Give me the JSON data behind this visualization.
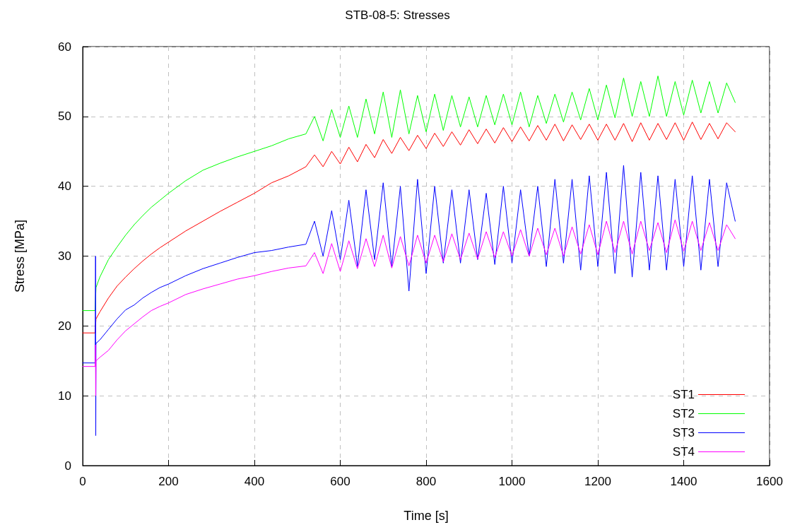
{
  "chart_data": {
    "type": "line",
    "title": "STB-08-5: Stresses",
    "xlabel": "Time [s]",
    "ylabel": "Stress [MPa]",
    "x": [
      0,
      29,
      30,
      30.5,
      31,
      40,
      60,
      80,
      100,
      120,
      140,
      160,
      180,
      200,
      240,
      280,
      320,
      360,
      400,
      440,
      480,
      520,
      540,
      560,
      580,
      600,
      620,
      640,
      660,
      680,
      700,
      720,
      740,
      760,
      780,
      800,
      820,
      840,
      860,
      880,
      900,
      920,
      940,
      960,
      980,
      1000,
      1020,
      1040,
      1060,
      1080,
      1100,
      1120,
      1140,
      1160,
      1180,
      1200,
      1220,
      1240,
      1260,
      1280,
      1300,
      1320,
      1340,
      1360,
      1380,
      1400,
      1420,
      1440,
      1460,
      1480,
      1500,
      1520
    ],
    "series": [
      {
        "name": "ST1",
        "color": "#ff0000",
        "x": [
          0,
          29,
          31,
          40,
          60,
          80,
          100,
          120,
          140,
          160,
          180,
          200,
          240,
          280,
          320,
          360,
          400,
          440,
          480,
          520,
          540,
          560,
          580,
          600,
          620,
          640,
          660,
          680,
          700,
          720,
          740,
          760,
          780,
          800,
          820,
          840,
          860,
          880,
          900,
          920,
          940,
          960,
          980,
          1000,
          1020,
          1040,
          1060,
          1080,
          1100,
          1120,
          1140,
          1160,
          1180,
          1200,
          1220,
          1240,
          1260,
          1280,
          1300,
          1320,
          1340,
          1360,
          1380,
          1400,
          1420,
          1440,
          1460,
          1480,
          1500,
          1520
        ],
        "values": [
          19,
          19,
          21,
          22,
          24,
          25.7,
          27,
          28.2,
          29.3,
          30.3,
          31.2,
          32,
          33.6,
          35,
          36.4,
          37.7,
          39,
          40.5,
          41.5,
          42.8,
          44.5,
          42.8,
          45,
          43.2,
          45.6,
          43.5,
          46,
          44.1,
          46.7,
          44.7,
          47,
          45.1,
          47.3,
          45.4,
          47.6,
          45.7,
          47.8,
          45.9,
          48.1,
          46.1,
          48.2,
          46.2,
          48.4,
          46.4,
          48.5,
          46.5,
          48.7,
          46.6,
          48.9,
          46.5,
          48.8,
          46.7,
          48.9,
          46.6,
          48.9,
          46.6,
          49,
          46.4,
          49.1,
          46.6,
          49,
          46.7,
          49.1,
          46.6,
          49.2,
          46.7,
          49,
          46.8,
          49.1,
          47.8
        ]
      },
      {
        "name": "ST2",
        "color": "#00ff00",
        "x": [
          0,
          29,
          31,
          40,
          60,
          80,
          100,
          120,
          140,
          160,
          180,
          200,
          240,
          280,
          320,
          360,
          400,
          440,
          480,
          520,
          540,
          560,
          580,
          600,
          620,
          640,
          660,
          680,
          700,
          720,
          740,
          760,
          780,
          800,
          820,
          840,
          860,
          880,
          900,
          920,
          940,
          960,
          980,
          1000,
          1020,
          1040,
          1060,
          1080,
          1100,
          1120,
          1140,
          1160,
          1180,
          1200,
          1220,
          1240,
          1260,
          1280,
          1300,
          1320,
          1340,
          1360,
          1380,
          1400,
          1420,
          1440,
          1460,
          1480,
          1500,
          1520
        ],
        "values": [
          22.2,
          22.2,
          25.5,
          27,
          29.5,
          31.3,
          33,
          34.5,
          35.8,
          37,
          38,
          39,
          40.8,
          42.3,
          43.3,
          44.2,
          45,
          45.8,
          46.8,
          47.5,
          50,
          46.5,
          51,
          47,
          51.5,
          47,
          52.5,
          47.5,
          53.5,
          47,
          53.8,
          47.5,
          53,
          47.8,
          53.2,
          48,
          53,
          48.5,
          52.8,
          48.5,
          53,
          48.8,
          53.2,
          48.8,
          53.5,
          48.5,
          53,
          49,
          53.2,
          49.2,
          53.5,
          49.5,
          54,
          49.5,
          54.5,
          49.8,
          55.5,
          50,
          55,
          50,
          55.8,
          50,
          55,
          50.2,
          55.2,
          50.5,
          55,
          50.5,
          54.8,
          52
        ]
      },
      {
        "name": "ST3",
        "color": "#0000ff",
        "values": [
          14.7,
          14.7,
          30,
          4.3,
          17.5,
          18,
          19.5,
          21,
          22.3,
          23,
          24,
          24.8,
          25.5,
          26,
          27.2,
          28.2,
          29,
          29.8,
          30.5,
          30.8,
          31.3,
          31.7,
          35,
          30,
          36.5,
          29.5,
          38,
          28.5,
          39.5,
          29.5,
          40.5,
          28.5,
          40,
          25,
          41,
          27.5,
          40,
          29,
          39.5,
          29,
          39.5,
          29.5,
          39,
          28.8,
          40,
          29,
          39.5,
          30,
          40,
          28.5,
          41,
          29,
          41,
          28,
          41.5,
          28.5,
          42,
          27.5,
          43,
          27,
          42,
          28,
          41.5,
          28,
          41,
          28.5,
          41.5,
          28,
          41,
          28.5,
          40.5,
          35
        ]
      },
      {
        "name": "ST4",
        "color": "#ff00ff",
        "values": [
          14.2,
          14.2,
          17.3,
          10,
          15,
          15.5,
          16.5,
          18,
          19.3,
          20.3,
          21.3,
          22.2,
          22.8,
          23.3,
          24.5,
          25.3,
          26,
          26.7,
          27.2,
          27.8,
          28.3,
          28.6,
          30.5,
          27.5,
          31.8,
          27.8,
          32.2,
          28.2,
          32.5,
          28.5,
          33,
          28.3,
          32.8,
          28.6,
          33,
          29,
          33,
          29.2,
          33.2,
          29.5,
          33.3,
          29.6,
          33.5,
          29.8,
          33.5,
          30,
          33.8,
          30,
          34,
          30.2,
          34,
          30,
          34.2,
          30.3,
          34.5,
          30.2,
          35,
          30.5,
          35,
          30.3,
          35,
          30.8,
          34.8,
          30.5,
          35.2,
          30.7,
          35,
          30.8,
          34.8,
          30.8,
          34.5,
          32.5
        ]
      }
    ],
    "xlim": [
      0,
      1600
    ],
    "xticks": [
      0,
      200,
      400,
      600,
      800,
      1000,
      1200,
      1400,
      1600
    ],
    "ylim": [
      0,
      60
    ],
    "yticks": [
      0,
      10,
      20,
      30,
      40,
      50,
      60
    ],
    "grid": true,
    "legend": "bottom right",
    "marker": "none",
    "line_style": "solid"
  }
}
